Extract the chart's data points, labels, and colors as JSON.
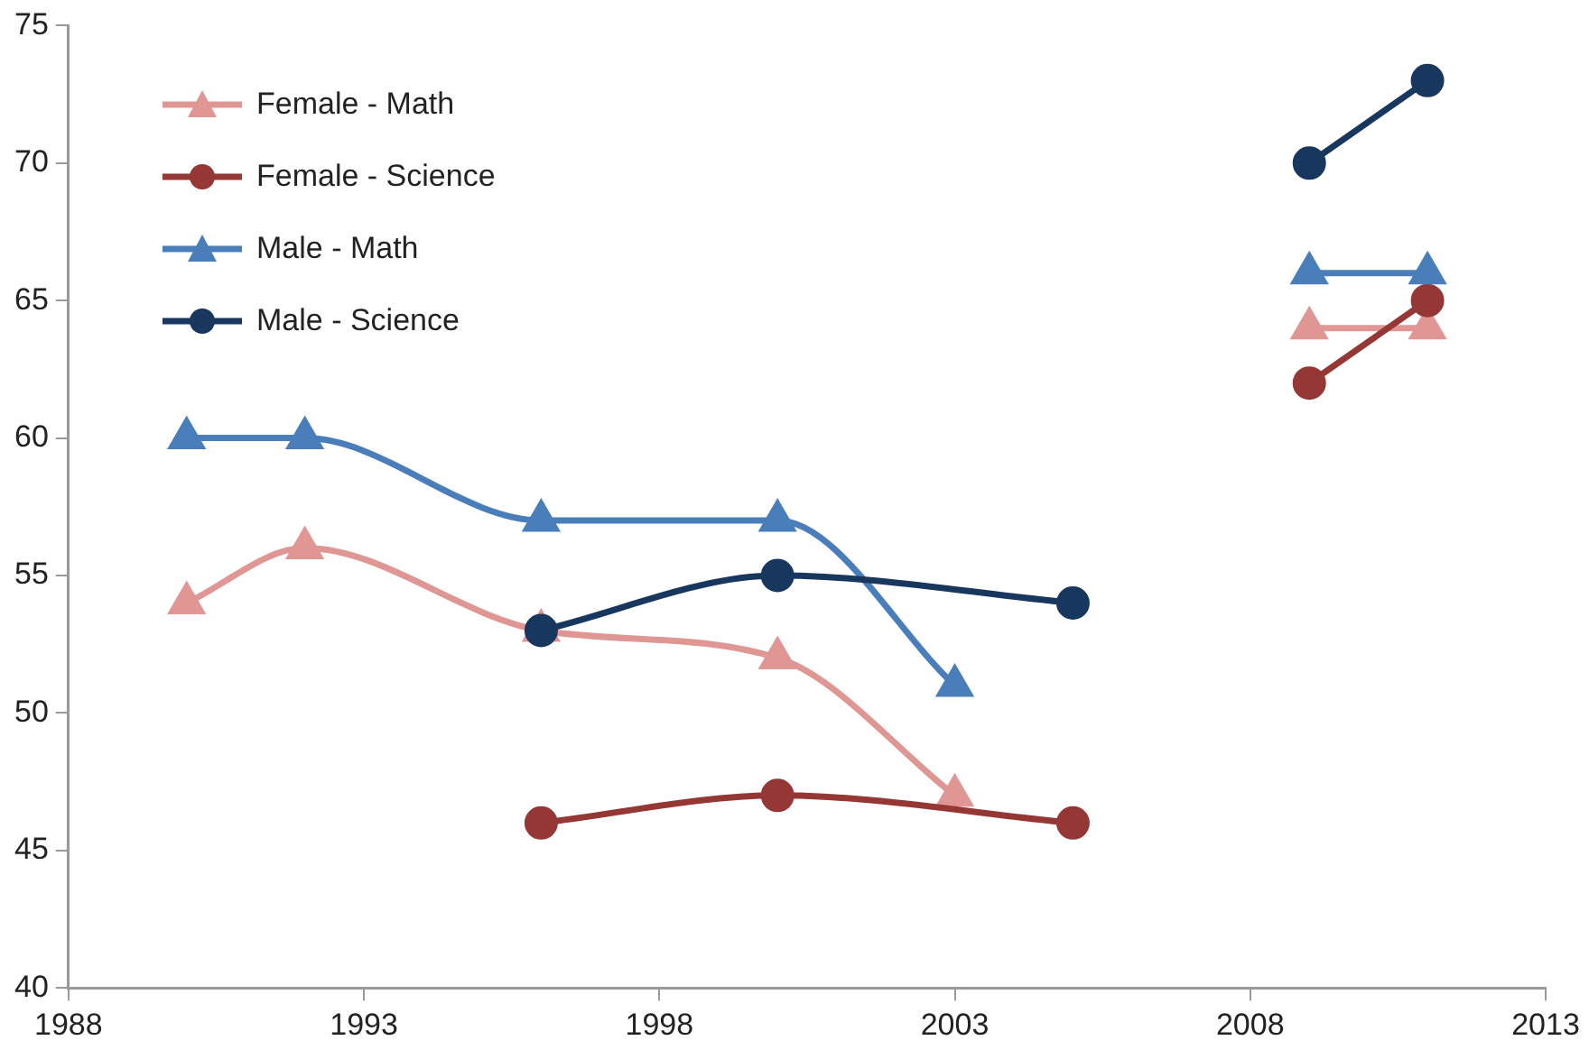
{
  "chart_data": {
    "type": "line",
    "xlim": [
      1988,
      2013
    ],
    "xticks": [
      1988,
      1993,
      1998,
      2003,
      2008,
      2013
    ],
    "ylim": [
      40,
      75
    ],
    "yticks": [
      40,
      45,
      50,
      55,
      60,
      65,
      70,
      75
    ],
    "legend": "top left",
    "series": [
      {
        "name": "Female - Math",
        "color": "#e09794",
        "marker": "triangle",
        "x": [
          1990,
          1992,
          1996,
          2000,
          2003
        ],
        "values": [
          54,
          56,
          53,
          52,
          47
        ]
      },
      {
        "name": "Female - Science",
        "color": "#953735",
        "marker": "circle",
        "x": [
          1996,
          2000,
          2005
        ],
        "values": [
          46,
          47,
          46
        ]
      },
      {
        "name": "Male - Math",
        "color": "#4a7ebb",
        "marker": "triangle",
        "x": [
          1990,
          1992,
          1996,
          2000,
          2003
        ],
        "values": [
          60,
          60,
          57,
          57,
          51
        ]
      },
      {
        "name": "Male - Science",
        "color": "#17375e",
        "marker": "circle",
        "x": [
          1996,
          2000,
          2005
        ],
        "values": [
          53,
          55,
          54
        ]
      },
      {
        "color": "#e09794",
        "marker": "triangle",
        "x": [
          2009,
          2011
        ],
        "values": [
          64,
          64
        ]
      },
      {
        "color": "#953735",
        "marker": "circle",
        "x": [
          2009,
          2011
        ],
        "values": [
          62,
          65
        ]
      },
      {
        "color": "#4a7ebb",
        "marker": "triangle",
        "x": [
          2009,
          2011
        ],
        "values": [
          66,
          66
        ]
      },
      {
        "color": "#17375e",
        "marker": "circle",
        "x": [
          2009,
          2011
        ],
        "values": [
          70,
          73
        ]
      }
    ]
  }
}
